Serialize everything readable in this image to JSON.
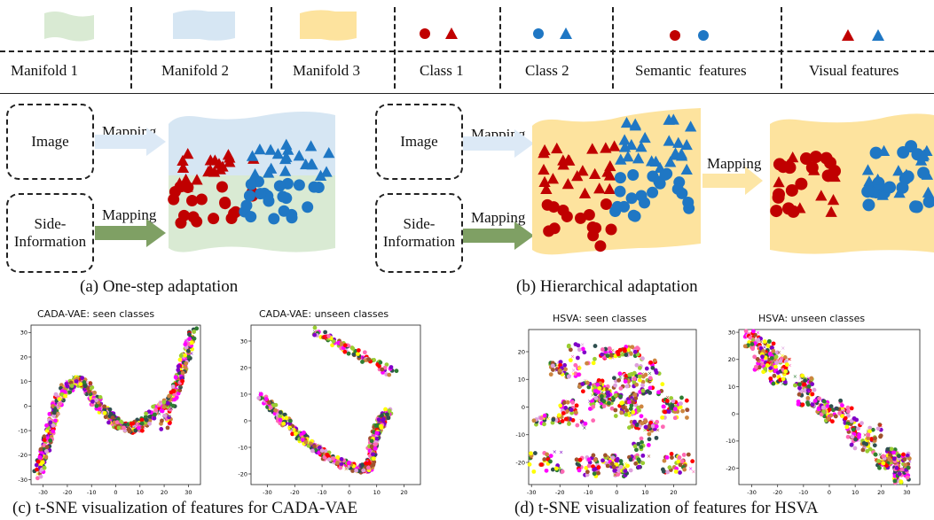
{
  "legend": {
    "items": [
      {
        "label": "Manifold 1",
        "icon": "green-manifold-swatch-icon",
        "color": "#d9ead3"
      },
      {
        "label": "Manifold 2",
        "icon": "blue-manifold-swatch-icon",
        "color": "#d6e6f3"
      },
      {
        "label": "Manifold 3",
        "icon": "yellow-manifold-swatch-icon",
        "color": "#fde39e"
      },
      {
        "label": "Class 1",
        "icon": "red-circle-triangle-icon",
        "color": "#c00000"
      },
      {
        "label": "Class 2",
        "icon": "blue-circle-triangle-icon",
        "color": "#1f77c4"
      },
      {
        "label": "Semantic  features",
        "icon": "red-blue-circles-icon"
      },
      {
        "label": "Visual features",
        "icon": "red-blue-triangles-icon"
      }
    ]
  },
  "panel_a": {
    "image_box": "Image",
    "side_box_line1": "Side-",
    "side_box_line2": "Information",
    "mapping_top": "Mapping",
    "mapping_bottom": "Mapping",
    "caption": "(a) One-step adaptation"
  },
  "panel_b": {
    "image_box": "Image",
    "side_box_line1": "Side-",
    "side_box_line2": "Information",
    "mapping_top": "Mapping",
    "mapping_bottom": "Mapping",
    "mapping_right": "Mapping",
    "caption": "(b) Hierarchical adaptation"
  },
  "colors": {
    "class1": "#c00000",
    "class2": "#1f77c4",
    "manifold_green": "#d9ead3",
    "manifold_blue": "#d6e6f3",
    "manifold_yellow": "#fde39e",
    "arrow_blue": "#dce9f6",
    "arrow_green": "#7fa064",
    "arrow_yellow": "#fde6a6"
  },
  "chart_data": [
    {
      "type": "scatter",
      "title": "CADA-VAE: seen classes",
      "xticks": [
        -30,
        -20,
        -10,
        0,
        10,
        20,
        30
      ],
      "yticks": [
        -30,
        -20,
        -10,
        0,
        10,
        20,
        30
      ],
      "xlim": [
        -35,
        35
      ],
      "ylim": [
        -32,
        33
      ]
    },
    {
      "type": "scatter",
      "title": "CADA-VAE: unseen classes",
      "xticks": [
        -30,
        -20,
        -10,
        0,
        10,
        20
      ],
      "yticks": [
        -20,
        -10,
        0,
        10,
        20,
        30
      ],
      "xlim": [
        -36,
        26
      ],
      "ylim": [
        -24,
        36
      ]
    },
    {
      "type": "scatter",
      "title": "HSVA: seen classes",
      "xticks": [
        -30,
        -20,
        -10,
        0,
        10,
        20
      ],
      "yticks": [
        -20,
        -10,
        0,
        10,
        20
      ],
      "xlim": [
        -31,
        28
      ],
      "ylim": [
        -28,
        28
      ]
    },
    {
      "type": "scatter",
      "title": "HSVA: unseen classes",
      "xticks": [
        -30,
        -20,
        -10,
        0,
        10,
        20,
        30
      ],
      "yticks": [
        -20,
        -10,
        0,
        10,
        20,
        30
      ],
      "xlim": [
        -35,
        35
      ],
      "ylim": [
        -26,
        31
      ]
    }
  ],
  "captions": {
    "c": "(c) t-SNE visualization of features for CADA-VAE",
    "d": "(d) t-SNE visualization of features for HSVA"
  }
}
